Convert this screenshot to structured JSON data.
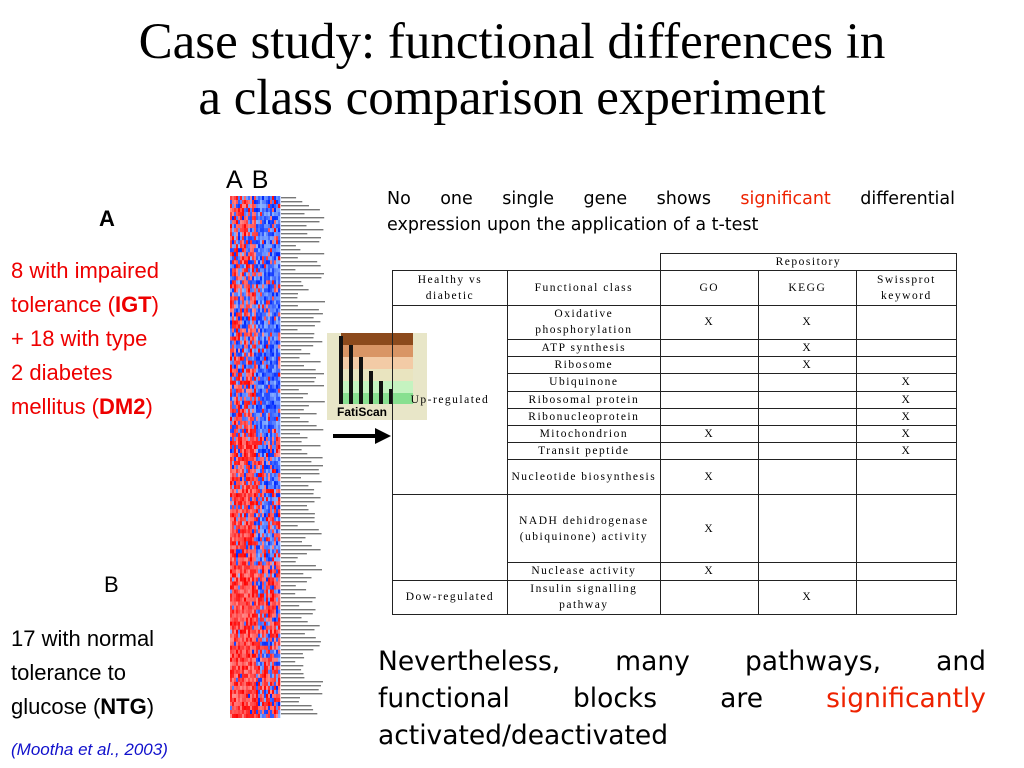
{
  "slide": {
    "title_line1": "Case study: functional differences in",
    "title_line2": "a class comparison experiment"
  },
  "heatmap_labels": {
    "a": "A",
    "b": "B"
  },
  "group_a": {
    "label": "A",
    "line1": "8 with impaired",
    "line2_pre": "tolerance (",
    "line2_bold": "IGT",
    "line2_post": ")",
    "line3": "+ 18 with type",
    "line4": "2 diabetes",
    "line5_pre": "mellitus (",
    "line5_bold": "DM2",
    "line5_post": ")"
  },
  "group_b": {
    "label": "B",
    "line1": "17 with normal",
    "line2": "tolerance to",
    "line3_pre": "glucose (",
    "line3_bold": "NTG",
    "line3_post": ")"
  },
  "citation": "(Mootha et al., 2003)",
  "logo_text": "FatiScan",
  "note_top": {
    "part1": "No one single gene shows ",
    "highlight": "significant",
    "part2": " differential",
    "line2": "expression upon the application of a t-test"
  },
  "note_bottom": {
    "line1": "Nevertheless, many pathways, and",
    "line2_pre": "functional blocks are ",
    "line2_highlight": "significantly",
    "line3": "activated/deactivated"
  },
  "table": {
    "header_repository": "Repository",
    "header_group": "Healthy vs diabetic",
    "header_class": "Functional class",
    "col_go": "GO",
    "col_kegg": "KEGG",
    "col_swissprot": "Swissprot keyword",
    "group_up": "Up-regulated",
    "group_down": "Dow-regulated",
    "mark": "X",
    "rows": [
      {
        "cls": "Oxidative phosphorylation",
        "go": "X",
        "kegg": "X",
        "sp": ""
      },
      {
        "cls": "ATP synthesis",
        "go": "",
        "kegg": "X",
        "sp": ""
      },
      {
        "cls": "Ribosome",
        "go": "",
        "kegg": "X",
        "sp": ""
      },
      {
        "cls": "Ubiquinone",
        "go": "",
        "kegg": "",
        "sp": "X"
      },
      {
        "cls": "Ribosomal protein",
        "go": "",
        "kegg": "",
        "sp": "X"
      },
      {
        "cls": "Ribonucleoprotein",
        "go": "",
        "kegg": "",
        "sp": "X"
      },
      {
        "cls": "Mitochondrion",
        "go": "X",
        "kegg": "",
        "sp": "X"
      },
      {
        "cls": "Transit peptide",
        "go": "",
        "kegg": "",
        "sp": "X"
      },
      {
        "cls": "Nucleotide biosynthesis",
        "go": "X",
        "kegg": "",
        "sp": ""
      },
      {
        "cls": "NADH dehidrogenase (ubiquinone) activity",
        "go": "X",
        "kegg": "",
        "sp": ""
      },
      {
        "cls": "Nuclease activity",
        "go": "X",
        "kegg": "",
        "sp": ""
      },
      {
        "cls": "Insulin signalling pathway",
        "go": "",
        "kegg": "X",
        "sp": ""
      }
    ]
  },
  "colors": {
    "red": "#ee0000",
    "blue_cite": "#1111cc",
    "heat_red": "#ff2020",
    "heat_blue": "#2040ff"
  }
}
